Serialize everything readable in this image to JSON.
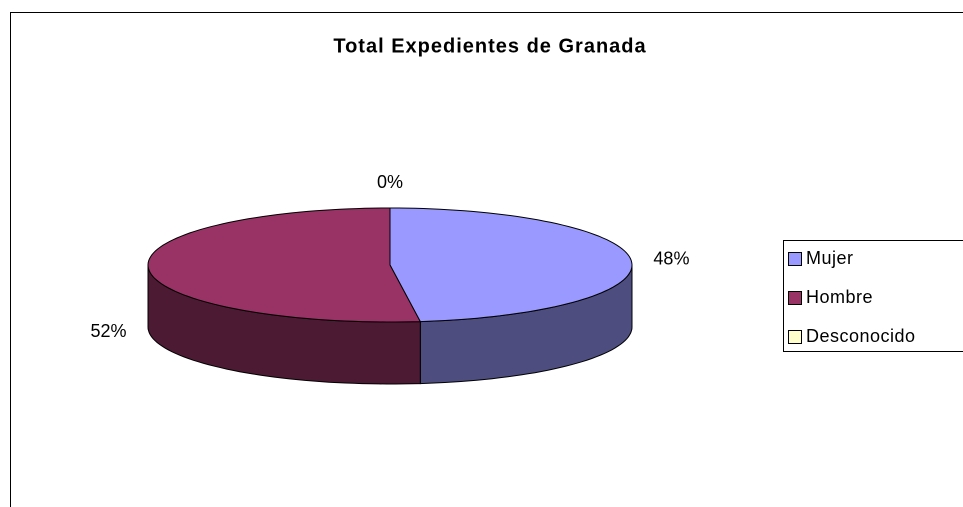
{
  "chart_data": {
    "type": "pie",
    "title": "Total Expedientes de Granada",
    "categories": [
      "Mujer",
      "Hombre",
      "Desconocido"
    ],
    "values": [
      48,
      52,
      0
    ],
    "value_labels": [
      "48%",
      "52%",
      "0%"
    ],
    "colors": [
      "#9999ff",
      "#993366",
      "#ffffcc"
    ],
    "side_colors": [
      "#4d4d80",
      "#4d1a33",
      "#80806a"
    ],
    "legend": "right"
  }
}
